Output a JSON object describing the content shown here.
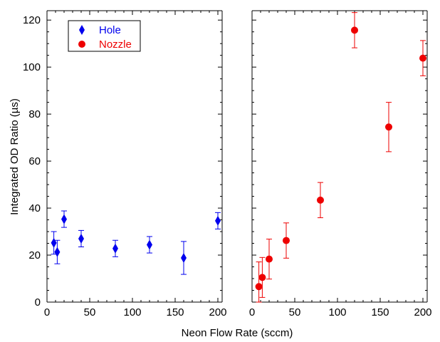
{
  "chart_data": {
    "type": "scatter",
    "xlabel": "Neon Flow Rate (sccm)",
    "ylabel": "Integrated OD Ratio (µs)",
    "ylim": [
      0,
      124
    ],
    "y_ticks": [
      "0",
      "20",
      "40",
      "60",
      "80",
      "100",
      "120"
    ],
    "panels": [
      {
        "name": "left",
        "xlim": [
          0,
          205
        ],
        "x_ticks": [
          "0",
          "50",
          "100",
          "150",
          "200"
        ],
        "series": [
          {
            "name": "Hole",
            "marker": "diamond",
            "color": "#0000ee",
            "x": [
              8,
              12,
              20,
              40,
              80,
              120,
              160,
              200
            ],
            "y": [
              25.2,
              21.3,
              35.3,
              27.0,
              22.8,
              24.4,
              18.8,
              34.6
            ],
            "err": [
              4.8,
              5.0,
              3.5,
              3.5,
              3.5,
              3.5,
              7.0,
              3.5
            ]
          }
        ]
      },
      {
        "name": "right",
        "xlim": [
          0,
          205
        ],
        "x_ticks": [
          "0",
          "50",
          "100",
          "150",
          "200"
        ],
        "series": [
          {
            "name": "Nozzle",
            "marker": "circle",
            "color": "#ee0000",
            "x": [
              8,
              12,
              20,
              40,
              80,
              120,
              160,
              200
            ],
            "y": [
              6.6,
              10.5,
              18.3,
              26.2,
              43.4,
              115.7,
              74.5,
              103.8
            ],
            "err": [
              10.5,
              8.5,
              8.5,
              7.5,
              7.5,
              7.5,
              10.5,
              7.5
            ]
          }
        ]
      }
    ],
    "legend": {
      "placement": "top-left",
      "entries": [
        {
          "label": "Hole",
          "color": "#0000ee",
          "marker": "diamond"
        },
        {
          "label": "Nozzle",
          "color": "#ee0000",
          "marker": "circle"
        }
      ]
    },
    "grid": false
  }
}
